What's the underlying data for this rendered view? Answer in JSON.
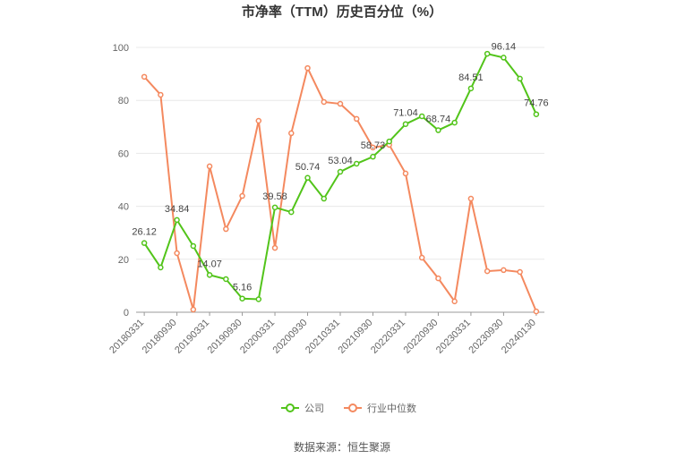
{
  "chart_data": {
    "type": "line",
    "title": "市净率（TTM）历史百分位（%）",
    "source": "数据来源：恒生聚源",
    "categories": [
      "20180331",
      null,
      "20180930",
      null,
      "20190331",
      null,
      "20190930",
      null,
      "20200331",
      null,
      "20200930",
      null,
      "20210331",
      null,
      "20210930",
      null,
      "20220331",
      null,
      "20220930",
      null,
      "20230331",
      null,
      "20230930",
      null,
      "20240130"
    ],
    "series": [
      {
        "name": "公司",
        "color": "#52c41a",
        "values": [
          26.12,
          16.9,
          34.84,
          25.0,
          14.07,
          12.5,
          5.16,
          4.9,
          39.58,
          37.8,
          50.74,
          42.9,
          53.04,
          56.1,
          58.73,
          64.5,
          71.04,
          74.0,
          68.74,
          71.6,
          84.51,
          97.6,
          96.14,
          88.2,
          74.76
        ],
        "value_labels": [
          "26.12",
          null,
          "34.84",
          null,
          "14.07",
          null,
          "5.16",
          null,
          "39.58",
          null,
          "50.74",
          null,
          "53.04",
          null,
          "58.73",
          null,
          "71.04",
          null,
          "68.74",
          null,
          "84.51",
          null,
          "96.14",
          null,
          "74.76"
        ]
      },
      {
        "name": "行业中位数",
        "color": "#f4895f",
        "values": [
          88.9,
          82.1,
          22.3,
          1.0,
          55.1,
          31.4,
          43.9,
          72.3,
          24.3,
          67.6,
          92.2,
          79.4,
          78.7,
          73.0,
          62.2,
          63.2,
          52.4,
          20.6,
          12.8,
          4.1,
          42.9,
          15.5,
          15.9,
          15.2,
          0.3
        ]
      }
    ],
    "ylim": [
      0,
      100
    ],
    "yticks": [
      0,
      20,
      40,
      60,
      80,
      100
    ],
    "grid": true,
    "legend": "bottom"
  }
}
